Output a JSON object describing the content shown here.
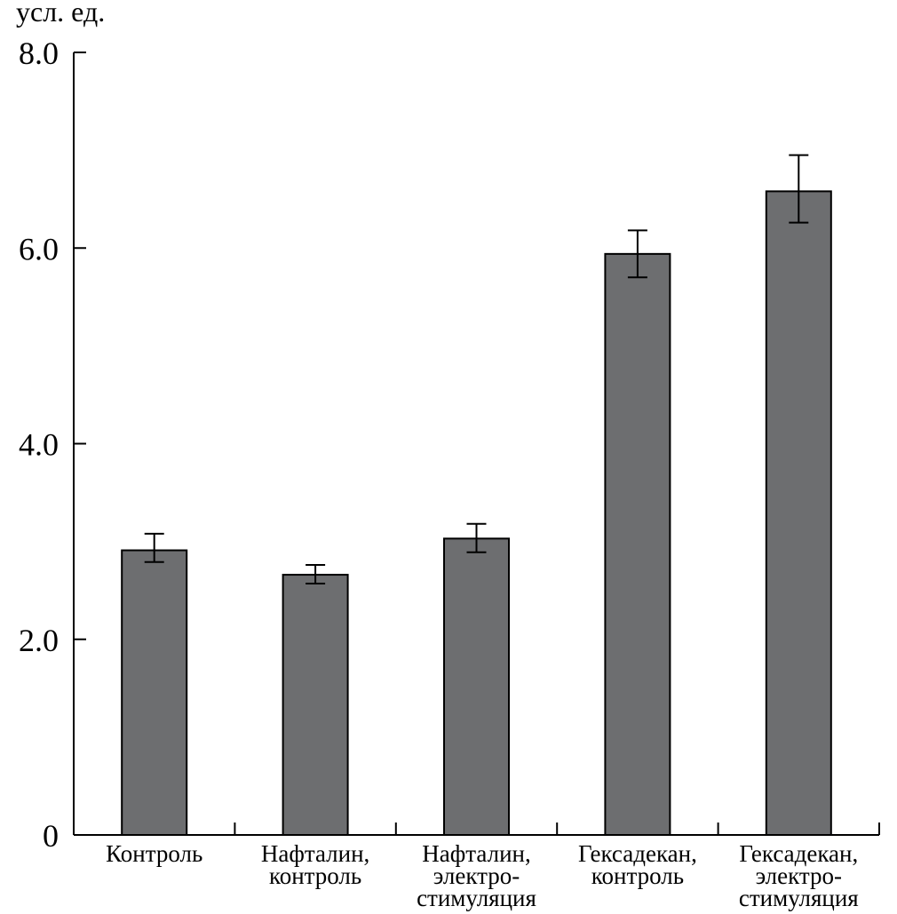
{
  "chart_data": {
    "type": "bar",
    "title": "",
    "xlabel": "",
    "ylabel": "усл. ед.",
    "ylim": [
      0,
      8.0
    ],
    "yticks": [
      0,
      2.0,
      4.0,
      6.0,
      8.0
    ],
    "ytick_labels": [
      "0",
      "2.0",
      "4.0",
      "6.0",
      "8.0"
    ],
    "grid": false,
    "categories": [
      [
        "Контроль"
      ],
      [
        "Нафталин,",
        "контроль"
      ],
      [
        "Нафталин,",
        "электро-",
        "стимуляция"
      ],
      [
        "Гексадекан,",
        "контроль"
      ],
      [
        "Гексадекан,",
        "электро-",
        "стимуляция"
      ]
    ],
    "values": [
      2.91,
      2.66,
      3.03,
      5.94,
      6.58
    ],
    "error_low": [
      2.79,
      2.57,
      2.89,
      5.7,
      6.26
    ],
    "error_high": [
      3.08,
      2.76,
      3.18,
      6.18,
      6.95
    ],
    "bar_color": "#6d6e70"
  }
}
